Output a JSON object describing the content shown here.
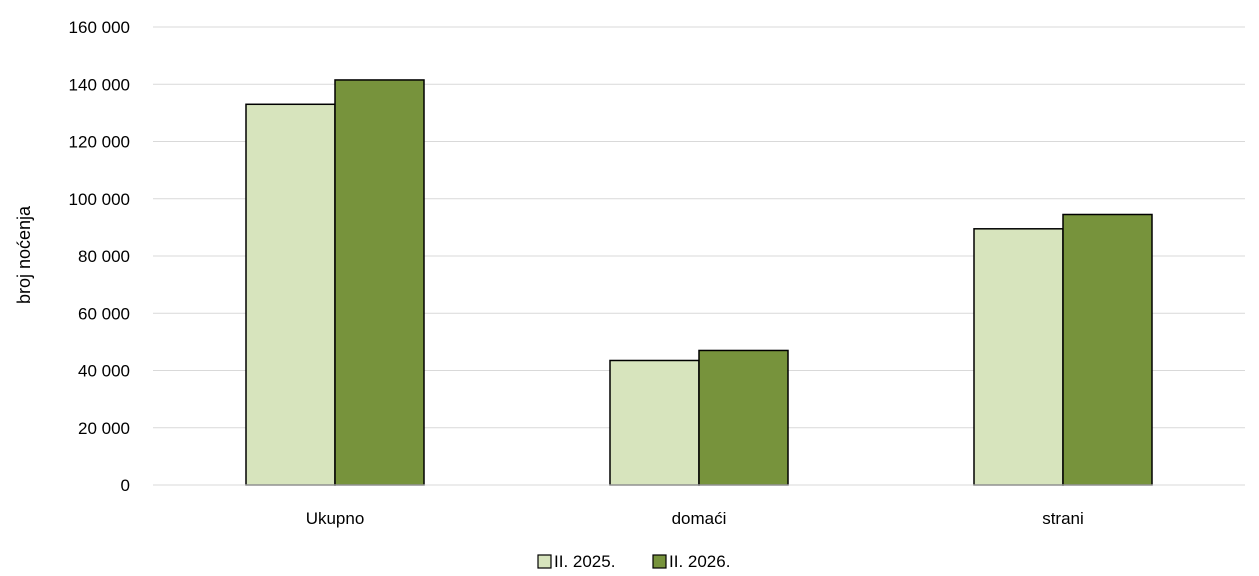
{
  "chart_data": {
    "type": "bar",
    "ylabel": "broj noćenja",
    "categories": [
      "Ukupno",
      "domaći",
      "strani"
    ],
    "series": [
      {
        "name": "II. 2025.",
        "values": [
          133000,
          43500,
          89500
        ],
        "color": "#d7e4bd"
      },
      {
        "name": "II. 2026.",
        "values": [
          141500,
          47000,
          94500
        ],
        "color": "#77933c"
      }
    ],
    "ylim": [
      0,
      160000
    ],
    "yticks": [
      0,
      20000,
      40000,
      60000,
      80000,
      100000,
      120000,
      140000,
      160000
    ],
    "ytick_labels": [
      "0",
      "20 000",
      "40 000",
      "60 000",
      "80 000",
      "100 000",
      "120 000",
      "140 000",
      "160 000"
    ],
    "grid": true,
    "legend_position": "bottom-center"
  }
}
